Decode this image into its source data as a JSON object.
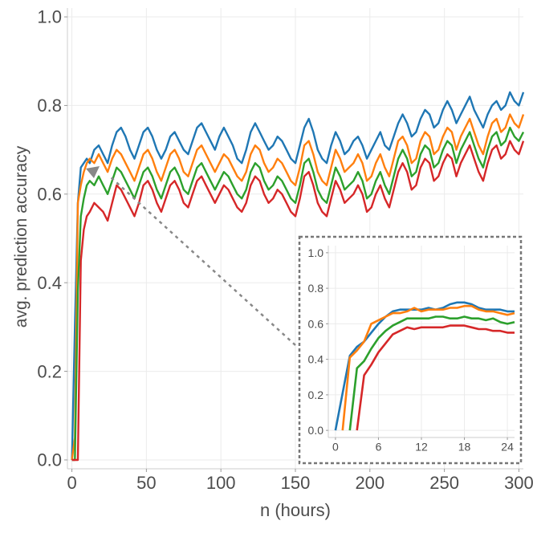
{
  "chart_data": {
    "type": "line",
    "title": "",
    "xlabel": "n (hours)",
    "ylabel": "avg. prediction accuracy",
    "xlim": [
      -3,
      303
    ],
    "ylim": [
      -0.02,
      1.02
    ],
    "x_ticks": [
      0,
      50,
      100,
      150,
      200,
      250,
      300
    ],
    "y_ticks": [
      0.0,
      0.2,
      0.4,
      0.6,
      0.8,
      1.0
    ],
    "grid": true,
    "legend": "none",
    "series": [
      {
        "name": "blue",
        "color": "#1f77b4",
        "x": [
          0,
          2,
          4,
          6,
          8,
          10,
          12,
          15,
          18,
          21,
          24,
          27,
          30,
          33,
          36,
          39,
          42,
          45,
          48,
          51,
          54,
          57,
          60,
          63,
          66,
          69,
          72,
          75,
          78,
          81,
          84,
          87,
          90,
          93,
          96,
          99,
          102,
          105,
          108,
          111,
          114,
          117,
          120,
          123,
          126,
          129,
          132,
          135,
          138,
          141,
          144,
          147,
          150,
          153,
          156,
          159,
          162,
          165,
          168,
          171,
          174,
          177,
          180,
          183,
          186,
          189,
          192,
          195,
          198,
          201,
          204,
          207,
          210,
          213,
          216,
          219,
          222,
          225,
          228,
          231,
          234,
          237,
          240,
          243,
          246,
          249,
          252,
          255,
          258,
          261,
          264,
          267,
          270,
          273,
          276,
          279,
          282,
          285,
          288,
          291,
          294,
          297,
          300,
          303
        ],
        "y": [
          0.0,
          0.3,
          0.58,
          0.66,
          0.67,
          0.68,
          0.67,
          0.7,
          0.71,
          0.69,
          0.67,
          0.71,
          0.74,
          0.75,
          0.73,
          0.7,
          0.68,
          0.71,
          0.74,
          0.75,
          0.73,
          0.7,
          0.68,
          0.7,
          0.73,
          0.74,
          0.72,
          0.7,
          0.69,
          0.72,
          0.75,
          0.76,
          0.74,
          0.72,
          0.7,
          0.73,
          0.75,
          0.73,
          0.71,
          0.68,
          0.67,
          0.7,
          0.74,
          0.76,
          0.74,
          0.72,
          0.7,
          0.71,
          0.73,
          0.72,
          0.7,
          0.68,
          0.67,
          0.71,
          0.75,
          0.77,
          0.74,
          0.7,
          0.68,
          0.67,
          0.71,
          0.74,
          0.72,
          0.69,
          0.7,
          0.72,
          0.73,
          0.71,
          0.68,
          0.7,
          0.72,
          0.74,
          0.71,
          0.7,
          0.73,
          0.76,
          0.78,
          0.76,
          0.73,
          0.74,
          0.77,
          0.79,
          0.78,
          0.75,
          0.76,
          0.79,
          0.81,
          0.79,
          0.76,
          0.78,
          0.8,
          0.82,
          0.79,
          0.77,
          0.75,
          0.78,
          0.8,
          0.81,
          0.79,
          0.8,
          0.83,
          0.81,
          0.8,
          0.83
        ]
      },
      {
        "name": "orange",
        "color": "#ff7f0e",
        "x": [
          0,
          2,
          4,
          6,
          8,
          10,
          12,
          15,
          18,
          21,
          24,
          27,
          30,
          33,
          36,
          39,
          42,
          45,
          48,
          51,
          54,
          57,
          60,
          63,
          66,
          69,
          72,
          75,
          78,
          81,
          84,
          87,
          90,
          93,
          96,
          99,
          102,
          105,
          108,
          111,
          114,
          117,
          120,
          123,
          126,
          129,
          132,
          135,
          138,
          141,
          144,
          147,
          150,
          153,
          156,
          159,
          162,
          165,
          168,
          171,
          174,
          177,
          180,
          183,
          186,
          189,
          192,
          195,
          198,
          201,
          204,
          207,
          210,
          213,
          216,
          219,
          222,
          225,
          228,
          231,
          234,
          237,
          240,
          243,
          246,
          249,
          252,
          255,
          258,
          261,
          264,
          267,
          270,
          273,
          276,
          279,
          282,
          285,
          288,
          291,
          294,
          297,
          300,
          303
        ],
        "y": [
          0.0,
          0.05,
          0.58,
          0.62,
          0.65,
          0.67,
          0.68,
          0.67,
          0.69,
          0.67,
          0.65,
          0.68,
          0.7,
          0.69,
          0.67,
          0.65,
          0.63,
          0.66,
          0.69,
          0.7,
          0.68,
          0.65,
          0.63,
          0.66,
          0.69,
          0.7,
          0.68,
          0.65,
          0.64,
          0.67,
          0.7,
          0.71,
          0.69,
          0.67,
          0.65,
          0.67,
          0.69,
          0.68,
          0.66,
          0.64,
          0.63,
          0.65,
          0.69,
          0.71,
          0.7,
          0.67,
          0.65,
          0.66,
          0.68,
          0.67,
          0.65,
          0.63,
          0.62,
          0.66,
          0.71,
          0.72,
          0.69,
          0.65,
          0.63,
          0.62,
          0.66,
          0.7,
          0.68,
          0.65,
          0.66,
          0.67,
          0.69,
          0.67,
          0.63,
          0.64,
          0.67,
          0.69,
          0.66,
          0.64,
          0.68,
          0.72,
          0.73,
          0.71,
          0.67,
          0.68,
          0.72,
          0.74,
          0.73,
          0.69,
          0.7,
          0.73,
          0.75,
          0.74,
          0.7,
          0.73,
          0.75,
          0.77,
          0.74,
          0.71,
          0.69,
          0.73,
          0.76,
          0.77,
          0.74,
          0.75,
          0.78,
          0.76,
          0.75,
          0.78
        ]
      },
      {
        "name": "green",
        "color": "#2ca02c",
        "x": [
          0,
          2,
          4,
          6,
          8,
          10,
          12,
          15,
          18,
          21,
          24,
          27,
          30,
          33,
          36,
          39,
          42,
          45,
          48,
          51,
          54,
          57,
          60,
          63,
          66,
          69,
          72,
          75,
          78,
          81,
          84,
          87,
          90,
          93,
          96,
          99,
          102,
          105,
          108,
          111,
          114,
          117,
          120,
          123,
          126,
          129,
          132,
          135,
          138,
          141,
          144,
          147,
          150,
          153,
          156,
          159,
          162,
          165,
          168,
          171,
          174,
          177,
          180,
          183,
          186,
          189,
          192,
          195,
          198,
          201,
          204,
          207,
          210,
          213,
          216,
          219,
          222,
          225,
          228,
          231,
          234,
          237,
          240,
          243,
          246,
          249,
          252,
          255,
          258,
          261,
          264,
          267,
          270,
          273,
          276,
          279,
          282,
          285,
          288,
          291,
          294,
          297,
          300,
          303
        ],
        "y": [
          0.0,
          0.0,
          0.38,
          0.55,
          0.59,
          0.62,
          0.63,
          0.62,
          0.64,
          0.62,
          0.6,
          0.63,
          0.66,
          0.65,
          0.63,
          0.61,
          0.59,
          0.62,
          0.65,
          0.66,
          0.64,
          0.61,
          0.59,
          0.62,
          0.65,
          0.66,
          0.64,
          0.61,
          0.6,
          0.63,
          0.66,
          0.67,
          0.65,
          0.63,
          0.61,
          0.63,
          0.65,
          0.64,
          0.62,
          0.6,
          0.59,
          0.61,
          0.65,
          0.67,
          0.66,
          0.63,
          0.61,
          0.62,
          0.64,
          0.63,
          0.61,
          0.59,
          0.58,
          0.62,
          0.67,
          0.68,
          0.65,
          0.61,
          0.59,
          0.58,
          0.62,
          0.66,
          0.64,
          0.61,
          0.62,
          0.63,
          0.65,
          0.63,
          0.59,
          0.6,
          0.63,
          0.65,
          0.62,
          0.6,
          0.64,
          0.68,
          0.7,
          0.68,
          0.64,
          0.65,
          0.69,
          0.71,
          0.7,
          0.66,
          0.67,
          0.7,
          0.72,
          0.71,
          0.67,
          0.7,
          0.72,
          0.74,
          0.71,
          0.68,
          0.66,
          0.7,
          0.73,
          0.74,
          0.71,
          0.72,
          0.75,
          0.73,
          0.72,
          0.74
        ]
      },
      {
        "name": "red",
        "color": "#d62728",
        "x": [
          0,
          2,
          4,
          6,
          8,
          10,
          12,
          15,
          18,
          21,
          24,
          27,
          30,
          33,
          36,
          39,
          42,
          45,
          48,
          51,
          54,
          57,
          60,
          63,
          66,
          69,
          72,
          75,
          78,
          81,
          84,
          87,
          90,
          93,
          96,
          99,
          102,
          105,
          108,
          111,
          114,
          117,
          120,
          123,
          126,
          129,
          132,
          135,
          138,
          141,
          144,
          147,
          150,
          153,
          156,
          159,
          162,
          165,
          168,
          171,
          174,
          177,
          180,
          183,
          186,
          189,
          192,
          195,
          198,
          201,
          204,
          207,
          210,
          213,
          216,
          219,
          222,
          225,
          228,
          231,
          234,
          237,
          240,
          243,
          246,
          249,
          252,
          255,
          258,
          261,
          264,
          267,
          270,
          273,
          276,
          279,
          282,
          285,
          288,
          291,
          294,
          297,
          300,
          303
        ],
        "y": [
          0.0,
          0.0,
          0.0,
          0.45,
          0.52,
          0.55,
          0.56,
          0.58,
          0.57,
          0.56,
          0.54,
          0.58,
          0.62,
          0.61,
          0.59,
          0.57,
          0.55,
          0.58,
          0.62,
          0.63,
          0.61,
          0.58,
          0.56,
          0.59,
          0.62,
          0.63,
          0.61,
          0.58,
          0.57,
          0.6,
          0.63,
          0.64,
          0.62,
          0.6,
          0.58,
          0.6,
          0.62,
          0.61,
          0.59,
          0.57,
          0.56,
          0.58,
          0.62,
          0.64,
          0.63,
          0.6,
          0.58,
          0.59,
          0.61,
          0.6,
          0.58,
          0.56,
          0.55,
          0.59,
          0.64,
          0.65,
          0.62,
          0.58,
          0.56,
          0.55,
          0.59,
          0.63,
          0.61,
          0.58,
          0.59,
          0.6,
          0.62,
          0.6,
          0.56,
          0.57,
          0.6,
          0.62,
          0.59,
          0.57,
          0.61,
          0.65,
          0.67,
          0.65,
          0.61,
          0.62,
          0.66,
          0.68,
          0.67,
          0.63,
          0.64,
          0.67,
          0.69,
          0.68,
          0.64,
          0.67,
          0.69,
          0.71,
          0.68,
          0.65,
          0.63,
          0.67,
          0.7,
          0.71,
          0.68,
          0.69,
          0.72,
          0.7,
          0.69,
          0.72
        ]
      }
    ],
    "inset": {
      "xlim": [
        -1,
        25
      ],
      "ylim": [
        -0.04,
        1.04
      ],
      "x_ticks": [
        0,
        6,
        12,
        18,
        24
      ],
      "y_ticks": [
        0.0,
        0.2,
        0.4,
        0.6,
        0.8,
        1.0
      ],
      "series": [
        {
          "name": "blue",
          "color": "#1f77b4",
          "x": [
            0,
            1,
            2,
            3,
            4,
            5,
            6,
            7,
            8,
            9,
            10,
            11,
            12,
            13,
            14,
            15,
            16,
            17,
            18,
            19,
            20,
            21,
            22,
            23,
            24,
            25
          ],
          "y": [
            0.0,
            0.21,
            0.42,
            0.47,
            0.5,
            0.55,
            0.6,
            0.64,
            0.67,
            0.68,
            0.68,
            0.68,
            0.68,
            0.69,
            0.68,
            0.69,
            0.71,
            0.72,
            0.72,
            0.71,
            0.69,
            0.68,
            0.68,
            0.68,
            0.67,
            0.67
          ]
        },
        {
          "name": "orange",
          "color": "#ff7f0e",
          "x": [
            1,
            2,
            3,
            4,
            5,
            6,
            7,
            8,
            9,
            10,
            11,
            12,
            13,
            14,
            15,
            16,
            17,
            18,
            19,
            20,
            21,
            22,
            23,
            24,
            25
          ],
          "y": [
            0.0,
            0.41,
            0.45,
            0.5,
            0.6,
            0.62,
            0.64,
            0.66,
            0.66,
            0.67,
            0.69,
            0.67,
            0.68,
            0.68,
            0.68,
            0.69,
            0.69,
            0.7,
            0.7,
            0.68,
            0.67,
            0.67,
            0.66,
            0.65,
            0.66
          ]
        },
        {
          "name": "green",
          "color": "#2ca02c",
          "x": [
            2,
            3,
            4,
            5,
            6,
            7,
            8,
            9,
            10,
            11,
            12,
            13,
            14,
            15,
            16,
            17,
            18,
            19,
            20,
            21,
            22,
            23,
            24,
            25
          ],
          "y": [
            0.0,
            0.35,
            0.39,
            0.46,
            0.52,
            0.56,
            0.59,
            0.61,
            0.63,
            0.63,
            0.63,
            0.63,
            0.64,
            0.64,
            0.63,
            0.63,
            0.64,
            0.63,
            0.63,
            0.62,
            0.63,
            0.61,
            0.6,
            0.61
          ]
        },
        {
          "name": "red",
          "color": "#d62728",
          "x": [
            3,
            4,
            5,
            6,
            7,
            8,
            9,
            10,
            11,
            12,
            13,
            14,
            15,
            16,
            17,
            18,
            19,
            20,
            21,
            22,
            23,
            24,
            25
          ],
          "y": [
            0.0,
            0.31,
            0.37,
            0.44,
            0.49,
            0.54,
            0.56,
            0.58,
            0.57,
            0.58,
            0.58,
            0.58,
            0.58,
            0.59,
            0.59,
            0.59,
            0.58,
            0.57,
            0.57,
            0.56,
            0.56,
            0.55,
            0.55
          ]
        }
      ]
    }
  }
}
